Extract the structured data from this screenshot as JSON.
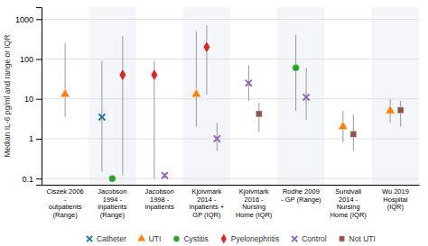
{
  "chart_data": {
    "type": "scatter",
    "ylabel": "Median IL-6 pg/ml and range or IQR",
    "log": "y",
    "ylim": [
      0.07,
      2000
    ],
    "yticks": [
      0.1,
      1,
      10,
      100,
      1000
    ],
    "grid": true,
    "legend": "bottom",
    "categories": [
      "Ciszek 2006\n-\noutpatients\n(Range)",
      "Jacobson\n1994 -\ninpatients\n(Range)",
      "Jacobson\n1998 -\ninpatients",
      "Kjolvmark\n2014 -\ninpatients +\nGP (IQR)",
      "Kjolvmark\n2016 -\nNursing\nHome (IQR)",
      "Rodhe 2009\n- GP (Range)",
      "Sundvall\n2014 -\nNursing\nHome (IQR)",
      "Wu 2019\nHospital\n(IQR)"
    ],
    "series": [
      {
        "name": "Catheter",
        "marker": "x",
        "values": [
          null,
          3.5,
          null,
          null,
          null,
          null,
          null,
          null
        ],
        "lo": [
          null,
          0.15,
          null,
          null,
          null,
          null,
          null,
          null
        ],
        "hi": [
          null,
          90,
          null,
          null,
          null,
          null,
          null,
          null
        ]
      },
      {
        "name": "UTI",
        "marker": "triangle",
        "values": [
          13,
          null,
          null,
          13,
          null,
          null,
          2.0,
          5.0
        ],
        "lo": [
          3.5,
          null,
          null,
          2,
          null,
          null,
          0.8,
          2.5
        ],
        "hi": [
          250,
          null,
          null,
          500,
          null,
          null,
          5,
          10
        ]
      },
      {
        "name": "Cystitis",
        "marker": "circle",
        "values": [
          null,
          0.1,
          null,
          null,
          null,
          60,
          null,
          null
        ],
        "lo": [
          null,
          0.09,
          null,
          null,
          null,
          5,
          null,
          null
        ],
        "hi": [
          null,
          0.12,
          null,
          null,
          null,
          400,
          null,
          null
        ]
      },
      {
        "name": "Pyelonephritis",
        "marker": "diamond",
        "values": [
          null,
          40,
          40,
          200,
          null,
          null,
          null,
          null
        ],
        "lo": [
          null,
          0.12,
          0.1,
          13,
          null,
          null,
          null,
          null
        ],
        "hi": [
          null,
          380,
          90,
          700,
          null,
          null,
          null,
          null
        ]
      },
      {
        "name": "Control",
        "marker": "x",
        "values": [
          null,
          null,
          0.12,
          1.0,
          25,
          11,
          null,
          null
        ],
        "lo": [
          null,
          null,
          0.1,
          0.5,
          9,
          3,
          null,
          null
        ],
        "hi": [
          null,
          null,
          0.14,
          2.5,
          70,
          60,
          null,
          null
        ]
      },
      {
        "name": "Not UTI",
        "marker": "square",
        "values": [
          null,
          null,
          null,
          null,
          4.2,
          null,
          1.3,
          5.2
        ],
        "lo": [
          null,
          null,
          null,
          null,
          1.5,
          null,
          0.5,
          2.0
        ],
        "hi": [
          null,
          null,
          null,
          null,
          8,
          null,
          4,
          9
        ]
      }
    ]
  }
}
